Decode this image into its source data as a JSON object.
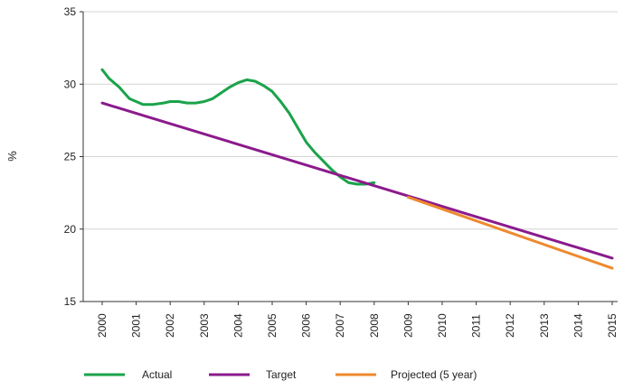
{
  "chart_data": {
    "type": "line",
    "title": "",
    "ylabel": "%",
    "xlabel": "",
    "ylim": [
      15,
      35
    ],
    "yticks": [
      15,
      20,
      25,
      30,
      35
    ],
    "xlim": [
      2000,
      2015
    ],
    "xticks": [
      "2000",
      "2001",
      "2002",
      "2003",
      "2004",
      "2005",
      "2006",
      "2007",
      "2008",
      "2009",
      "2010",
      "2011",
      "2012",
      "2013",
      "2014",
      "2015"
    ],
    "grid": "horizontal",
    "legend_position": "bottom",
    "series": [
      {
        "name": "Actual",
        "color": "#1aa34a",
        "x": [
          2000,
          2000.2,
          2000.5,
          2000.8,
          2001.2,
          2001.5,
          2001.8,
          2002.0,
          2002.25,
          2002.5,
          2002.75,
          2003.0,
          2003.25,
          2003.5,
          2003.75,
          2004.0,
          2004.25,
          2004.5,
          2004.75,
          2005.0,
          2005.25,
          2005.5,
          2005.75,
          2006.0,
          2006.25,
          2006.5,
          2006.75,
          2007.0,
          2007.25,
          2007.5,
          2007.75,
          2008.0
        ],
        "y": [
          31.0,
          30.4,
          29.8,
          29.0,
          28.6,
          28.6,
          28.7,
          28.8,
          28.8,
          28.7,
          28.7,
          28.8,
          29.0,
          29.4,
          29.8,
          30.1,
          30.3,
          30.2,
          29.9,
          29.5,
          28.8,
          28.0,
          27.0,
          26.0,
          25.3,
          24.7,
          24.1,
          23.6,
          23.2,
          23.1,
          23.1,
          23.2
        ]
      },
      {
        "name": "Target",
        "color": "#8b1a8c",
        "x": [
          2000,
          2015
        ],
        "y": [
          28.7,
          18.0
        ]
      },
      {
        "name": "Projected (5 year)",
        "color": "#ee8a2e",
        "x": [
          2009,
          2015
        ],
        "y": [
          22.2,
          17.3
        ]
      }
    ]
  },
  "legend": {
    "items": [
      {
        "label": "Actual",
        "color": "#1aa34a"
      },
      {
        "label": "Target",
        "color": "#8b1a8c"
      },
      {
        "label": "Projected (5 year)",
        "color": "#ee8a2e"
      }
    ]
  }
}
